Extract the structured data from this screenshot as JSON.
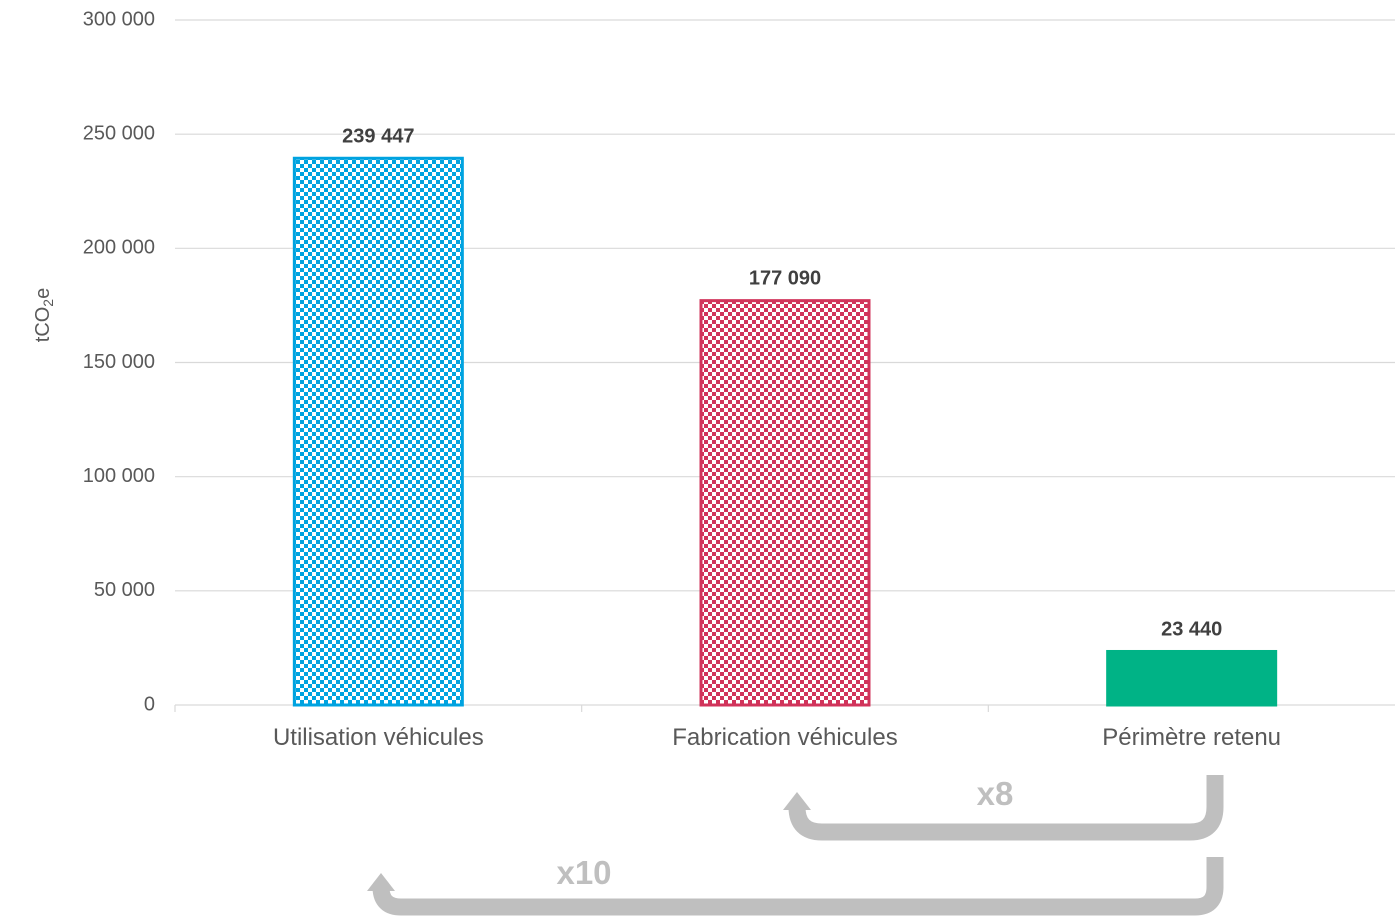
{
  "chart_data": {
    "type": "bar",
    "title": "",
    "xlabel": "",
    "ylabel": {
      "prefix": "tCO",
      "subscript": "2",
      "suffix": "e"
    },
    "ylim": [
      0,
      300000
    ],
    "yticks": [
      0,
      50000,
      100000,
      150000,
      200000,
      250000,
      300000
    ],
    "ytick_labels": [
      "0",
      "50 000",
      "100 000",
      "150 000",
      "200 000",
      "250 000",
      "300 000"
    ],
    "grid": true,
    "legend": "none",
    "categories": [
      "Utilisation véhicules",
      "Fabrication véhicules",
      "Périmètre retenu"
    ],
    "values": [
      239447,
      177090,
      23440
    ],
    "value_labels": [
      "239 447",
      "177 090",
      "23 440"
    ],
    "bar_styles": [
      {
        "color": "#00a3e0",
        "pattern": "checkerboard"
      },
      {
        "color": "#d1345b",
        "pattern": "checkerboard"
      },
      {
        "color": "#00b386",
        "pattern": "solid"
      }
    ],
    "annotations": [
      {
        "label": "x8",
        "from_category": "Périmètre retenu",
        "to_category": "Fabrication véhicules",
        "color": "#bfbfbf"
      },
      {
        "label": "x10",
        "from_category": "Périmètre retenu",
        "to_category": "Utilisation véhicules",
        "color": "#bfbfbf"
      }
    ]
  }
}
